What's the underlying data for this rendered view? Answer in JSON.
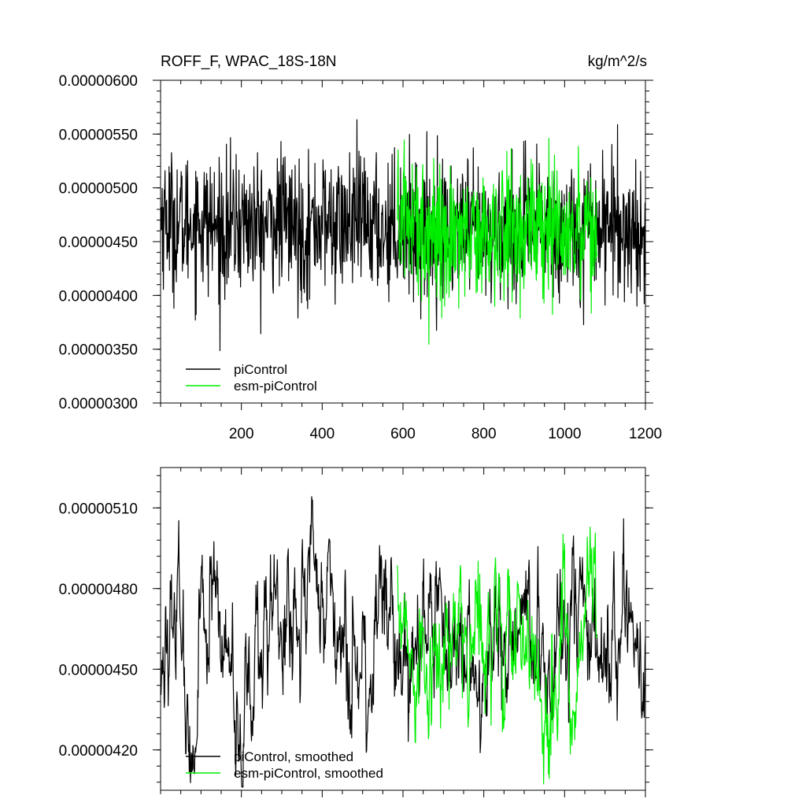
{
  "chart_data": [
    {
      "type": "line",
      "title": "ROFF_F, WPAC_18S-18N",
      "units": "kg/m^2/s",
      "xlabel": "",
      "ylabel": "",
      "xlim": [
        0,
        1200
      ],
      "ylim": [
        3e-06,
        6e-06
      ],
      "x_tick_values": [
        200,
        400,
        600,
        800,
        1000,
        1200
      ],
      "x_tick_labels": [
        "200",
        "400",
        "600",
        "800",
        "1000",
        "1200"
      ],
      "y_tick_values": [
        3e-06,
        3.5e-06,
        4e-06,
        4.5e-06,
        5e-06,
        5.5e-06,
        6e-06
      ],
      "y_tick_labels": [
        "0.00000300",
        "0.00000350",
        "0.00000400",
        "0.00000450",
        "0.00000500",
        "0.00000550",
        "0.00000600"
      ],
      "legend_position": "bottom-left",
      "series": [
        {
          "name": "piControl",
          "color": "#000000",
          "x_range": [
            1,
            1200
          ],
          "sampled_x": [
            1,
            50,
            100,
            150,
            200,
            250,
            300,
            350,
            400,
            450,
            500,
            550,
            600,
            650,
            700,
            750,
            800,
            850,
            900,
            950,
            1000,
            1050,
            1100,
            1150,
            1200
          ],
          "sampled_values": [
            4.75e-06,
            4.65e-06,
            4.7e-06,
            4.6e-06,
            4.68e-06,
            4.62e-06,
            4.72e-06,
            4.58e-06,
            4.69e-06,
            4.63e-06,
            4.7e-06,
            4.61e-06,
            4.66e-06,
            4.55e-06,
            4.62e-06,
            4.58e-06,
            4.52e-06,
            4.6e-06,
            4.57e-06,
            4.63e-06,
            4.59e-06,
            4.66e-06,
            4.7e-06,
            4.62e-06,
            4.55e-06
          ]
        },
        {
          "name": "esm-piControl",
          "color": "#00ee00",
          "x_range": [
            586,
            1080
          ],
          "sampled_x": [
            586,
            600,
            650,
            700,
            750,
            800,
            850,
            900,
            950,
            1000,
            1050,
            1080
          ],
          "sampled_values": [
            4.7e-06,
            4.78e-06,
            4.62e-06,
            4.55e-06,
            4.65e-06,
            4.58e-06,
            4.6e-06,
            4.64e-06,
            4.57e-06,
            4.66e-06,
            4.68e-06,
            4.6e-06
          ]
        }
      ]
    },
    {
      "type": "line",
      "title": "",
      "xlabel": "",
      "ylabel": "",
      "xlim": [
        0,
        1200
      ],
      "ylim": [
        4.05e-06,
        5.25e-06
      ],
      "x_tick_values": [
        200,
        400,
        600,
        800,
        1000,
        1200
      ],
      "y_tick_values": [
        4.2e-06,
        4.5e-06,
        4.8e-06,
        5.1e-06
      ],
      "y_tick_labels": [
        "0.00000420",
        "0.00000450",
        "0.00000480",
        "0.00000510"
      ],
      "legend_position": "bottom-left",
      "series": [
        {
          "name": "piControl, smoothed",
          "color": "#000000",
          "x_range": [
            1,
            1200
          ],
          "sampled_x": [
            1,
            50,
            75,
            100,
            150,
            180,
            200,
            250,
            300,
            350,
            380,
            400,
            450,
            500,
            550,
            600,
            650,
            700,
            750,
            800,
            850,
            900,
            950,
            1000,
            1050,
            1100,
            1150,
            1200
          ],
          "sampled_values": [
            4.45e-06,
            4.65e-06,
            4.2e-06,
            4.7e-06,
            4.6e-06,
            4.45e-06,
            4.3e-06,
            4.62e-06,
            4.68e-06,
            4.73e-06,
            4.88e-06,
            4.7e-06,
            4.6e-06,
            4.45e-06,
            4.7e-06,
            4.6e-06,
            4.5e-06,
            4.7e-06,
            4.55e-06,
            4.5e-06,
            4.62e-06,
            4.66e-06,
            4.5e-06,
            4.6e-06,
            4.65e-06,
            4.58e-06,
            4.7e-06,
            4.55e-06
          ]
        },
        {
          "name": "esm-piControl, smoothed",
          "color": "#00ee00",
          "x_range": [
            586,
            1080
          ],
          "sampled_x": [
            586,
            600,
            630,
            650,
            700,
            750,
            800,
            850,
            900,
            940,
            950,
            1000,
            1020,
            1050,
            1060,
            1080
          ],
          "sampled_values": [
            4.83e-06,
            4.8e-06,
            4.45e-06,
            4.55e-06,
            4.5e-06,
            4.7e-06,
            4.55e-06,
            4.65e-06,
            4.6e-06,
            4.5e-06,
            4.35e-06,
            4.65e-06,
            4.2e-06,
            4.85e-06,
            5e-06,
            4.75e-06
          ]
        }
      ]
    }
  ]
}
